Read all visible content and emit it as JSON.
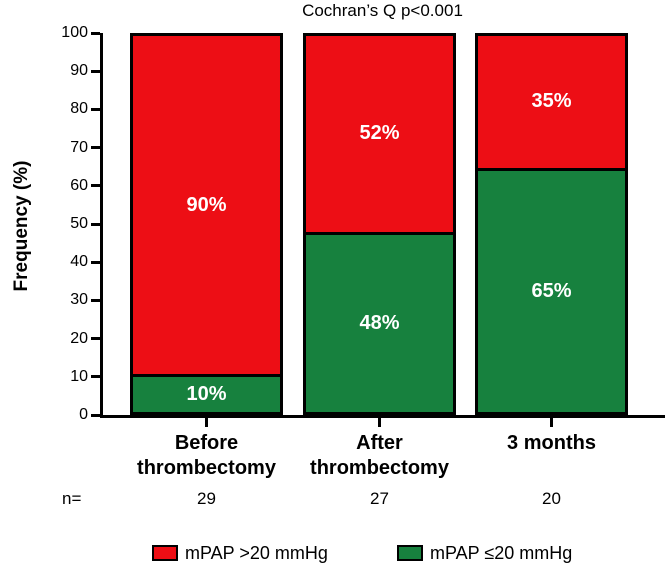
{
  "chart_data": {
    "type": "bar",
    "stacked": true,
    "title": "Cochran’s Q p<0.001",
    "ylabel": "Frequency (%)",
    "ylim": [
      0,
      100
    ],
    "yticks": [
      0,
      10,
      20,
      30,
      40,
      50,
      60,
      70,
      80,
      90,
      100
    ],
    "grid": false,
    "legend_position": "bottom",
    "categories": [
      {
        "lines": [
          "Before",
          "thrombectomy"
        ],
        "n": "29"
      },
      {
        "lines": [
          "After",
          "thrombectomy"
        ],
        "n": "27"
      },
      {
        "lines": [
          "3 months"
        ],
        "n": "20"
      }
    ],
    "n_prefix": "n=",
    "series": [
      {
        "name": "mPAP >20 mmHg",
        "color": "#ED0E15",
        "position": "top",
        "values": [
          90,
          52,
          35
        ],
        "labels": [
          "90%",
          "52%",
          "35%"
        ]
      },
      {
        "name": "mPAP ≤20 mmHg",
        "color": "#17813E",
        "position": "bottom",
        "values": [
          10,
          48,
          65
        ],
        "labels": [
          "10%",
          "48%",
          "65%"
        ]
      }
    ],
    "legend": [
      {
        "label": "mPAP >20 mmHg",
        "color": "#ED0E15"
      },
      {
        "label": "mPAP ≤20 mmHg",
        "color": "#17813E"
      }
    ]
  }
}
